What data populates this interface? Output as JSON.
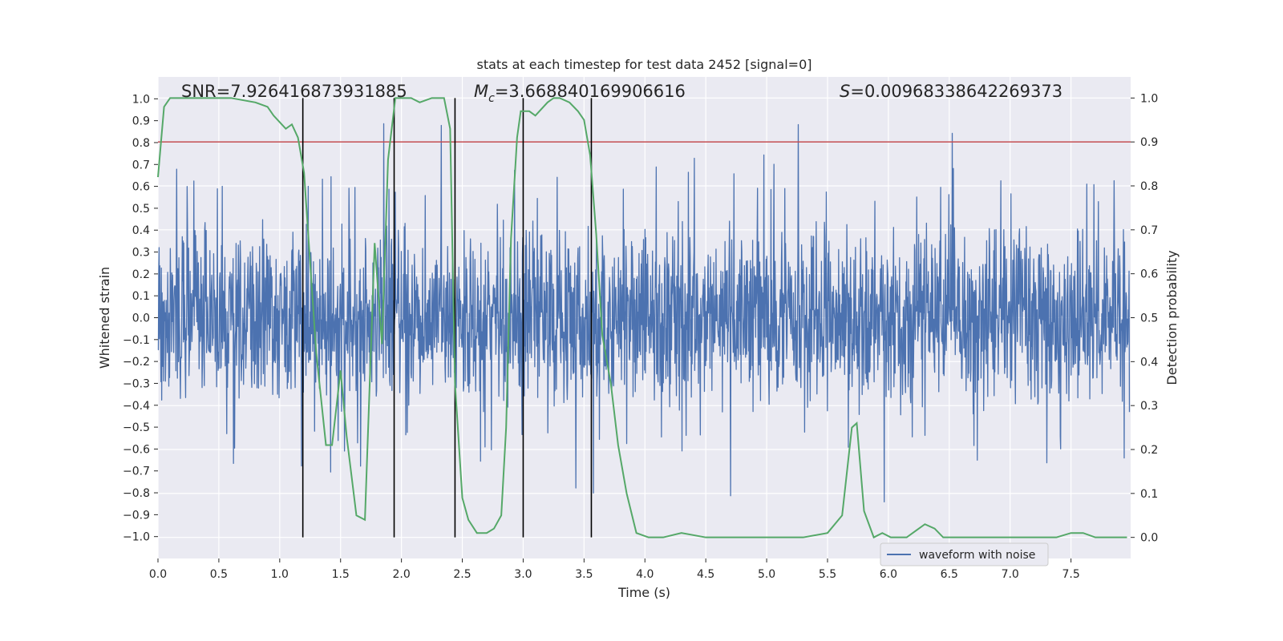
{
  "chart_data": {
    "type": "line",
    "title": "stats at each timestep for test data 2452 [signal=0]",
    "xlabel": "Time (s)",
    "ylabel": "Whitened strain",
    "y2label": "Detection probability",
    "xlim": [
      0.0,
      7.99
    ],
    "ylim": [
      -1.1,
      1.1
    ],
    "y2lim": [
      -0.048,
      1.048
    ],
    "xticks": [
      "0.0",
      "0.5",
      "1.0",
      "1.5",
      "2.0",
      "2.5",
      "3.0",
      "3.5",
      "4.0",
      "4.5",
      "5.0",
      "5.5",
      "6.0",
      "6.5",
      "7.0",
      "7.5"
    ],
    "yticks": [
      "1.0",
      "0.9",
      "0.8",
      "0.7",
      "0.6",
      "0.5",
      "0.4",
      "0.3",
      "0.2",
      "0.1",
      "0.0",
      "-0.1",
      "-0.2",
      "-0.3",
      "-0.4",
      "-0.5",
      "-0.6",
      "-0.7",
      "-0.8",
      "-0.9",
      "-1.0"
    ],
    "y2ticks": [
      "1.0",
      "0.9",
      "0.8",
      "0.7",
      "0.6",
      "0.5",
      "0.4",
      "0.3",
      "0.2",
      "0.1",
      "0.0"
    ],
    "annotations": {
      "snr": "SNR=7.926416873931885",
      "mc_symbol": "M",
      "mc_sub": "c",
      "mc_value": "=3.668840169906616",
      "s_symbol": "S",
      "s_value": "=0.00968338642269373"
    },
    "threshold": 0.9,
    "vlines": [
      1.19,
      1.94,
      2.44,
      3.0,
      3.56
    ],
    "vline_range": [
      0.0,
      1.0
    ],
    "series": [
      {
        "name": "waveform with noise",
        "role": "strain",
        "color": "#4c72b0",
        "seed": 2452,
        "samples": 2600,
        "noise_sigma": 0.2,
        "upper_envelope_ref": 0.55,
        "lower_envelope_ref": -0.55
      },
      {
        "name": "detection probability",
        "role": "probability",
        "color": "#55a868",
        "x": [
          0.0,
          0.05,
          0.1,
          0.2,
          0.4,
          0.6,
          0.8,
          0.9,
          0.95,
          1.05,
          1.1,
          1.15,
          1.2,
          1.3,
          1.38,
          1.43,
          1.5,
          1.55,
          1.63,
          1.7,
          1.78,
          1.84,
          1.89,
          1.95,
          2.0,
          2.08,
          2.15,
          2.25,
          2.35,
          2.4,
          2.44,
          2.5,
          2.55,
          2.62,
          2.7,
          2.76,
          2.82,
          2.86,
          2.9,
          2.95,
          2.98,
          3.0,
          3.05,
          3.1,
          3.2,
          3.25,
          3.3,
          3.38,
          3.45,
          3.5,
          3.55,
          3.6,
          3.65,
          3.72,
          3.78,
          3.85,
          3.93,
          4.03,
          4.15,
          4.3,
          4.5,
          4.7,
          4.9,
          5.1,
          5.3,
          5.5,
          5.62,
          5.7,
          5.74,
          5.8,
          5.88,
          5.95,
          6.02,
          6.08,
          6.15,
          6.25,
          6.3,
          6.38,
          6.45,
          6.52,
          6.7,
          7.0,
          7.2,
          7.38,
          7.5,
          7.6,
          7.7,
          7.8,
          7.9,
          7.96
        ],
        "y": [
          0.82,
          0.98,
          1.0,
          1.0,
          1.0,
          1.0,
          0.99,
          0.98,
          0.96,
          0.93,
          0.94,
          0.91,
          0.83,
          0.42,
          0.21,
          0.21,
          0.38,
          0.23,
          0.05,
          0.04,
          0.67,
          0.44,
          0.86,
          1.0,
          1.0,
          1.0,
          0.99,
          1.0,
          1.0,
          0.93,
          0.35,
          0.09,
          0.04,
          0.01,
          0.01,
          0.02,
          0.05,
          0.25,
          0.68,
          0.91,
          0.97,
          0.97,
          0.97,
          0.96,
          0.99,
          1.0,
          1.0,
          0.99,
          0.97,
          0.95,
          0.87,
          0.69,
          0.46,
          0.35,
          0.21,
          0.1,
          0.01,
          0.0,
          0.0,
          0.01,
          0.0,
          0.0,
          0.0,
          0.0,
          0.0,
          0.01,
          0.05,
          0.25,
          0.26,
          0.06,
          0.0,
          0.01,
          0.0,
          0.0,
          0.0,
          0.02,
          0.03,
          0.02,
          0.0,
          0.0,
          0.0,
          0.0,
          0.0,
          0.0,
          0.01,
          0.01,
          0.0,
          0.0,
          0.0,
          0.0
        ]
      }
    ],
    "legend": {
      "location": "lower-right",
      "entries": [
        "waveform with noise"
      ]
    }
  }
}
